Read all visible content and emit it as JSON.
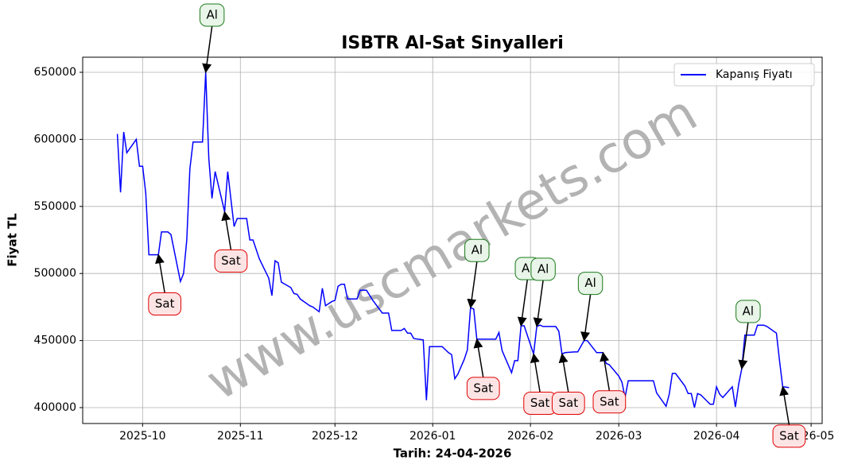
{
  "chart_data": {
    "type": "line",
    "title": "ISBTR Al-Sat Sinyalleri",
    "x_label": "Tarih: 24-04-2026",
    "y_label": "Fiyat TL",
    "watermark": "www.uscmarkets.com",
    "xlim": [
      20343,
      20577.5
    ],
    "ylim": [
      388150,
      661250
    ],
    "xticks": [
      {
        "value": 20362,
        "label": "2025-10"
      },
      {
        "value": 20393,
        "label": "2025-11"
      },
      {
        "value": 20423,
        "label": "2025-12"
      },
      {
        "value": 20454,
        "label": "2026-01"
      },
      {
        "value": 20485,
        "label": "2026-02"
      },
      {
        "value": 20513,
        "label": "2026-03"
      },
      {
        "value": 20544,
        "label": "2026-04"
      },
      {
        "value": 20574,
        "label": "2026-05"
      }
    ],
    "yticks": [
      400000,
      450000,
      500000,
      550000,
      600000,
      650000
    ],
    "grid": true,
    "legend": "upper right",
    "series": [
      {
        "name": "Kapanış Fiyatı",
        "color": "#0000ff",
        "x": [
          20354,
          20355,
          20356,
          20357,
          20360,
          20361,
          20362,
          20363,
          20364,
          20367,
          20368,
          20370,
          20371,
          20374,
          20375,
          20376,
          20377,
          20378,
          20381,
          20382,
          20383,
          20384,
          20385,
          20388,
          20389,
          20391,
          20392,
          20395,
          20396,
          20397,
          20399,
          20402,
          20403,
          20404,
          20405,
          20406,
          20409,
          20410,
          20411,
          20412,
          20415,
          20416,
          20418,
          20419,
          20420,
          20422,
          20423,
          20424,
          20425,
          20426,
          20427,
          20430,
          20431,
          20433,
          20435,
          20438,
          20440,
          20441,
          20444,
          20445,
          20446,
          20447,
          20448,
          20451,
          20452,
          20453,
          20457,
          20459,
          20460,
          20461,
          20462,
          20464,
          20465,
          20466,
          20467,
          20468,
          20474,
          20475,
          20476,
          20479,
          20480,
          20481,
          20482,
          20483,
          20486,
          20487,
          20488,
          20489,
          20493,
          20494,
          20495,
          20496,
          20499,
          20500,
          20502,
          20503,
          20506,
          20508,
          20509,
          20510,
          20513,
          20514,
          20515,
          20516,
          20524,
          20525,
          20528,
          20529,
          20530,
          20531,
          20534,
          20535,
          20536,
          20537,
          20538,
          20539,
          20542,
          20543,
          20544,
          20545,
          20546,
          20549,
          20550,
          20551,
          20552,
          20553,
          20556,
          20557,
          20559,
          20560,
          20563,
          20564,
          20565,
          20567
        ],
        "values": [
          604000,
          560500,
          605500,
          590000,
          600000,
          580000,
          580000,
          560000,
          514000,
          514000,
          531000,
          531000,
          529000,
          494000,
          500000,
          525000,
          578000,
          598000,
          598000,
          650000,
          586000,
          556000,
          576000,
          546000,
          576000,
          535000,
          541000,
          541000,
          525000,
          525000,
          511000,
          496500,
          483500,
          509500,
          508000,
          493500,
          489500,
          485000,
          484500,
          481000,
          476000,
          475000,
          471500,
          489000,
          476000,
          479000,
          480000,
          490500,
          492000,
          492000,
          481000,
          481000,
          487500,
          487500,
          480000,
          470500,
          470500,
          457500,
          457500,
          459000,
          455500,
          455500,
          451500,
          450500,
          405500,
          445500,
          445500,
          441000,
          439500,
          421500,
          425000,
          436000,
          443000,
          474500,
          473500,
          451000,
          451000,
          456000,
          442500,
          426000,
          435000,
          435000,
          461000,
          461000,
          440000,
          460500,
          461500,
          460500,
          460500,
          457000,
          440000,
          441000,
          441500,
          441500,
          450000,
          450000,
          441000,
          441000,
          433000,
          432000,
          423500,
          419000,
          407500,
          420000,
          420000,
          411000,
          401000,
          410000,
          425500,
          425500,
          416000,
          410500,
          410500,
          400000,
          410500,
          409500,
          402500,
          402500,
          415500,
          410000,
          407500,
          415500,
          400500,
          417000,
          429000,
          454000,
          454000,
          461500,
          461500,
          460500,
          455500,
          434500,
          415500,
          415000
        ]
      }
    ],
    "annotations": [
      {
        "text": "Sat",
        "x": 20367,
        "y": 514000
      },
      {
        "text": "Al",
        "x": 20382,
        "y": 650000
      },
      {
        "text": "Sat",
        "x": 20388,
        "y": 546000
      },
      {
        "text": "Al",
        "x": 20466,
        "y": 474500
      },
      {
        "text": "Sat",
        "x": 20468,
        "y": 451000
      },
      {
        "text": "Al",
        "x": 20482,
        "y": 461000
      },
      {
        "text": "Sat",
        "x": 20486,
        "y": 440000
      },
      {
        "text": "Al",
        "x": 20487,
        "y": 460500
      },
      {
        "text": "Sat",
        "x": 20495,
        "y": 440000
      },
      {
        "text": "Al",
        "x": 20502,
        "y": 450000
      },
      {
        "text": "Sat",
        "x": 20508,
        "y": 441000
      },
      {
        "text": "Al",
        "x": 20552,
        "y": 429000
      },
      {
        "text": "Sat",
        "x": 20565,
        "y": 415500
      }
    ]
  }
}
